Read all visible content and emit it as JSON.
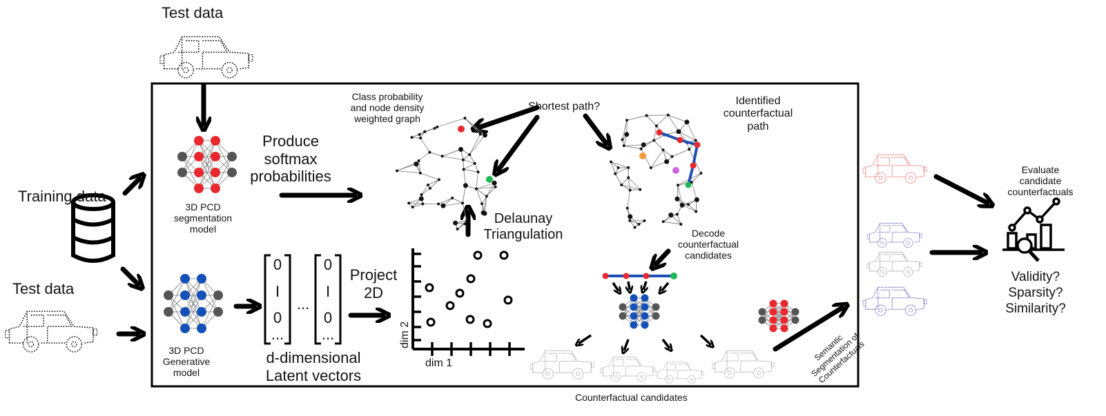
{
  "labels": {
    "test_data_top": "Test data",
    "test_data_left": "Test data",
    "training_data": "Training data",
    "seg_model": "3D PCD\nsegmentation\nmodel",
    "gen_model": "3D PCD\nGenerative\nmodel",
    "produce_softmax": "Produce\nsoftmax\nprobabilities",
    "class_prob_graph": "Class probability\nand node density\nweighted graph",
    "shortest_path": "Shortest path?",
    "identified_path": "Identified\ncounterfactual\npath",
    "delaunay": "Delaunay\nTriangulation",
    "project_2d": "Project\n2D",
    "latent_vectors": "d-dimensional\nLatent vectors",
    "dim1": "dim 1",
    "dim2": "dim 2",
    "decode_candidates": "Decode\ncounterfactual\ncandidates",
    "counterfactual_candidates": "Counterfactual candidates",
    "semantic_seg": "Semantic\nSegmentation of\nCounterfactuals",
    "evaluate": "Evaluate\ncandidate\ncounterfactuals",
    "questions": "Validity?\nSparsity?\nSimilarity?",
    "vector_values": [
      "0",
      "I",
      "0",
      "..."
    ],
    "ellipsis": "..."
  },
  "colors": {
    "seg_node": "#e8282e",
    "gen_node": "#1550b8",
    "grey_node": "#555555",
    "path": "#1f4fb5",
    "green": "#1db954",
    "orange": "#f39a3c",
    "violet": "#cc66dd",
    "red_car": "#e43b3b",
    "blue_car": "#3a3ab0"
  }
}
